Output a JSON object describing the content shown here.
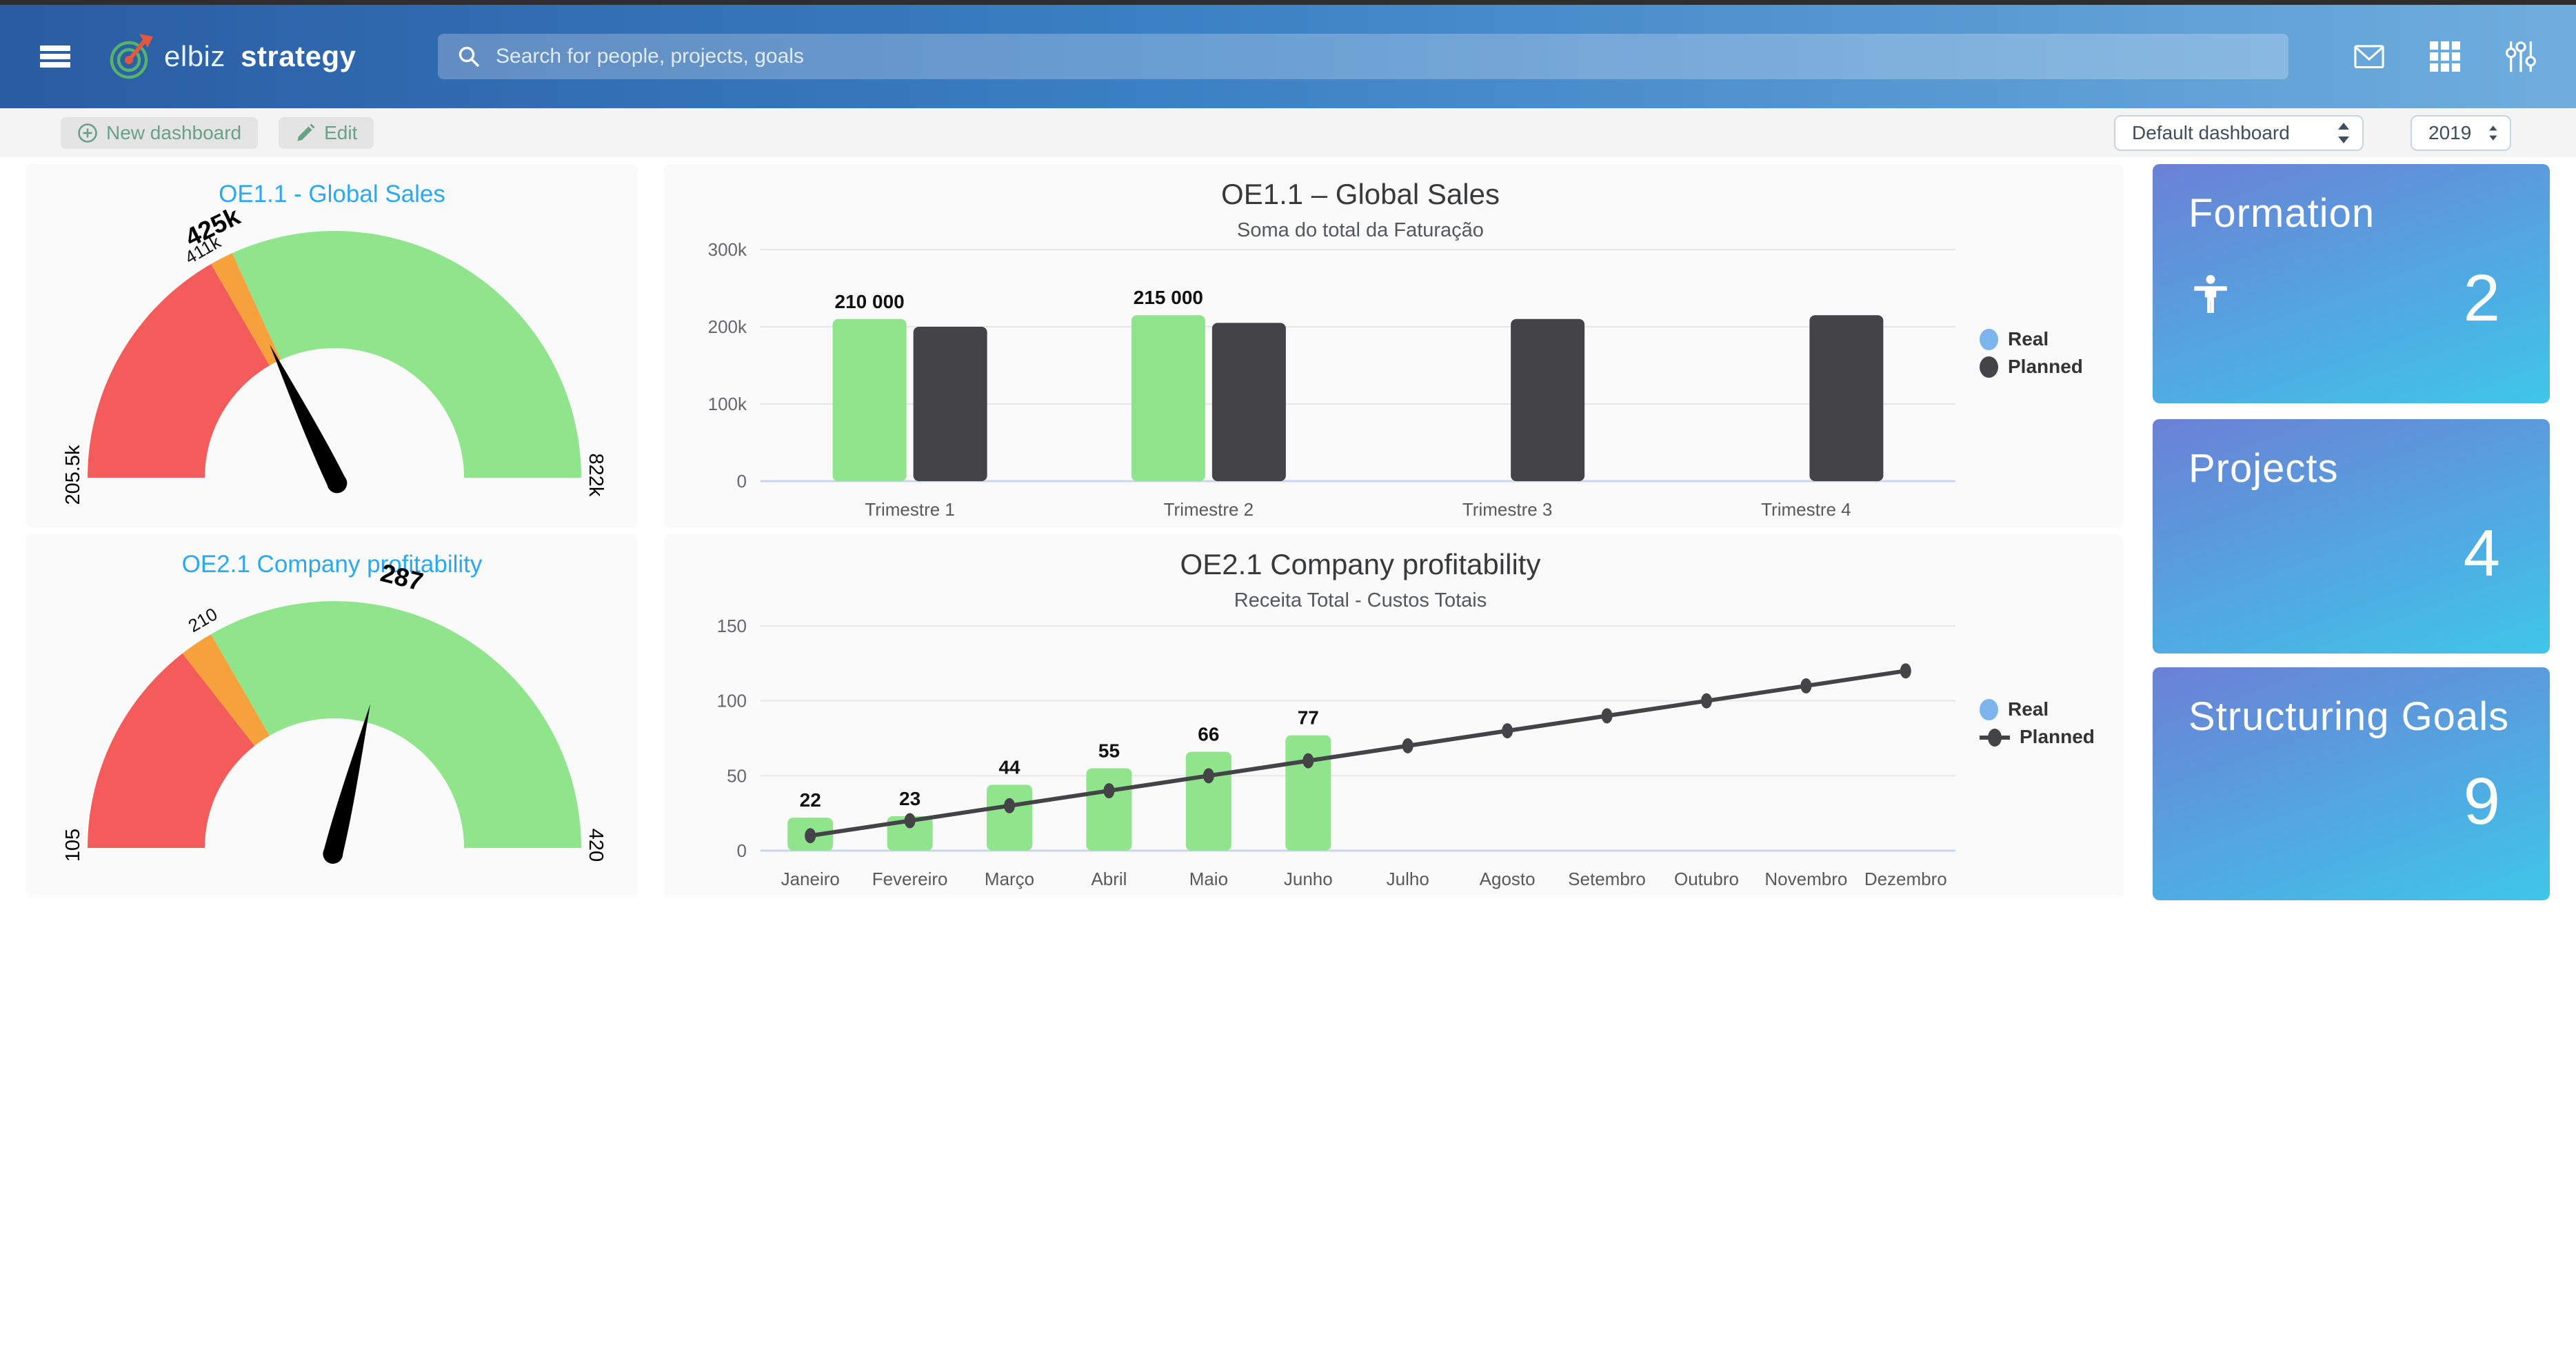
{
  "navbar": {
    "brand_primary": "elbiz",
    "brand_secondary": "strategy",
    "search_placeholder": "Search for people, projects, goals",
    "colors": {
      "gradient_left": "#2a5ca3",
      "gradient_right": "#6fadde"
    }
  },
  "toolbar": {
    "new_dashboard_label": "New dashboard",
    "edit_label": "Edit",
    "dashboard_select_value": "Default dashboard",
    "year_select_value": "2019",
    "button_text_color": "#6aa086"
  },
  "cards": [
    {
      "title": "Formation",
      "value": "2",
      "icon": "accessibility-person-icon"
    },
    {
      "title": "Projects",
      "value": "4"
    },
    {
      "title": "Structuring Goals",
      "value": "9"
    }
  ],
  "card_colors": {
    "gradient_top": "#6b80d5",
    "gradient_bottom": "#3fc6ea"
  },
  "chart_data": [
    {
      "type": "gauge",
      "title": "OE1.1 - Global Sales",
      "min": 205500,
      "max": 822000,
      "value": 425000,
      "value_label": "425k",
      "min_label": "205.5k",
      "max_label": "822k",
      "bands": [
        {
          "from": 205500,
          "to": 411000,
          "color": "#f45b5b"
        },
        {
          "from": 411000,
          "to": 430000,
          "color": "#f7a13c"
        },
        {
          "from": 430000,
          "to": 822000,
          "color": "#90e58c"
        }
      ],
      "tick_labels": [
        {
          "value": 411000,
          "label": "411k"
        }
      ]
    },
    {
      "type": "bar",
      "title": "OE1.1 – Global Sales",
      "subtitle": "Soma do total da Faturação",
      "categories": [
        "Trimestre 1",
        "Trimestre 2",
        "Trimestre 3",
        "Trimestre 4"
      ],
      "ylim": [
        0,
        300000
      ],
      "yticks": [
        {
          "value": 0,
          "label": "0"
        },
        {
          "value": 100000,
          "label": "100k"
        },
        {
          "value": 200000,
          "label": "200k"
        },
        {
          "value": 300000,
          "label": "300k"
        }
      ],
      "legend_position": "right",
      "grid": true,
      "series": [
        {
          "name": "Real",
          "type": "column",
          "color": "#90e58c",
          "legend_color": "#7cb5ec",
          "values": [
            210000,
            215000,
            null,
            null
          ],
          "data_labels": [
            "210 000",
            "215 000",
            null,
            null
          ]
        },
        {
          "name": "Planned",
          "type": "column",
          "color": "#434348",
          "values": [
            200000,
            205000,
            210000,
            215000
          ]
        }
      ]
    },
    {
      "type": "gauge",
      "title": "OE2.1 Company profitability",
      "min": 105,
      "max": 420,
      "value": 287,
      "value_label": "287",
      "min_label": "105",
      "max_label": "420",
      "bands": [
        {
          "from": 105,
          "to": 196,
          "color": "#f45b5b"
        },
        {
          "from": 196,
          "to": 210,
          "color": "#f7a13c"
        },
        {
          "from": 210,
          "to": 420,
          "color": "#90e58c"
        }
      ],
      "tick_labels": [
        {
          "value": 210,
          "label": "210"
        }
      ]
    },
    {
      "type": "bar+line",
      "title": "OE2.1 Company profitability",
      "subtitle": "Receita Total - Custos Totais",
      "categories": [
        "Janeiro",
        "Fevereiro",
        "Março",
        "Abril",
        "Maio",
        "Junho",
        "Julho",
        "Agosto",
        "Setembro",
        "Outubro",
        "Novembro",
        "Dezembro"
      ],
      "ylim": [
        0,
        150
      ],
      "yticks": [
        {
          "value": 0,
          "label": "0"
        },
        {
          "value": 50,
          "label": "50"
        },
        {
          "value": 100,
          "label": "100"
        },
        {
          "value": 150,
          "label": "150"
        }
      ],
      "legend_position": "right",
      "grid": true,
      "series": [
        {
          "name": "Real",
          "type": "column",
          "color": "#90e58c",
          "legend_color": "#7cb5ec",
          "values": [
            22,
            23,
            44,
            55,
            66,
            77,
            null,
            null,
            null,
            null,
            null,
            null
          ],
          "data_labels": [
            "22",
            "23",
            "44",
            "55",
            "66",
            "77",
            null,
            null,
            null,
            null,
            null,
            null
          ]
        },
        {
          "name": "Planned",
          "type": "line",
          "color": "#434348",
          "values": [
            10,
            20,
            30,
            40,
            50,
            60,
            70,
            80,
            90,
            100,
            110,
            120
          ]
        }
      ]
    }
  ]
}
